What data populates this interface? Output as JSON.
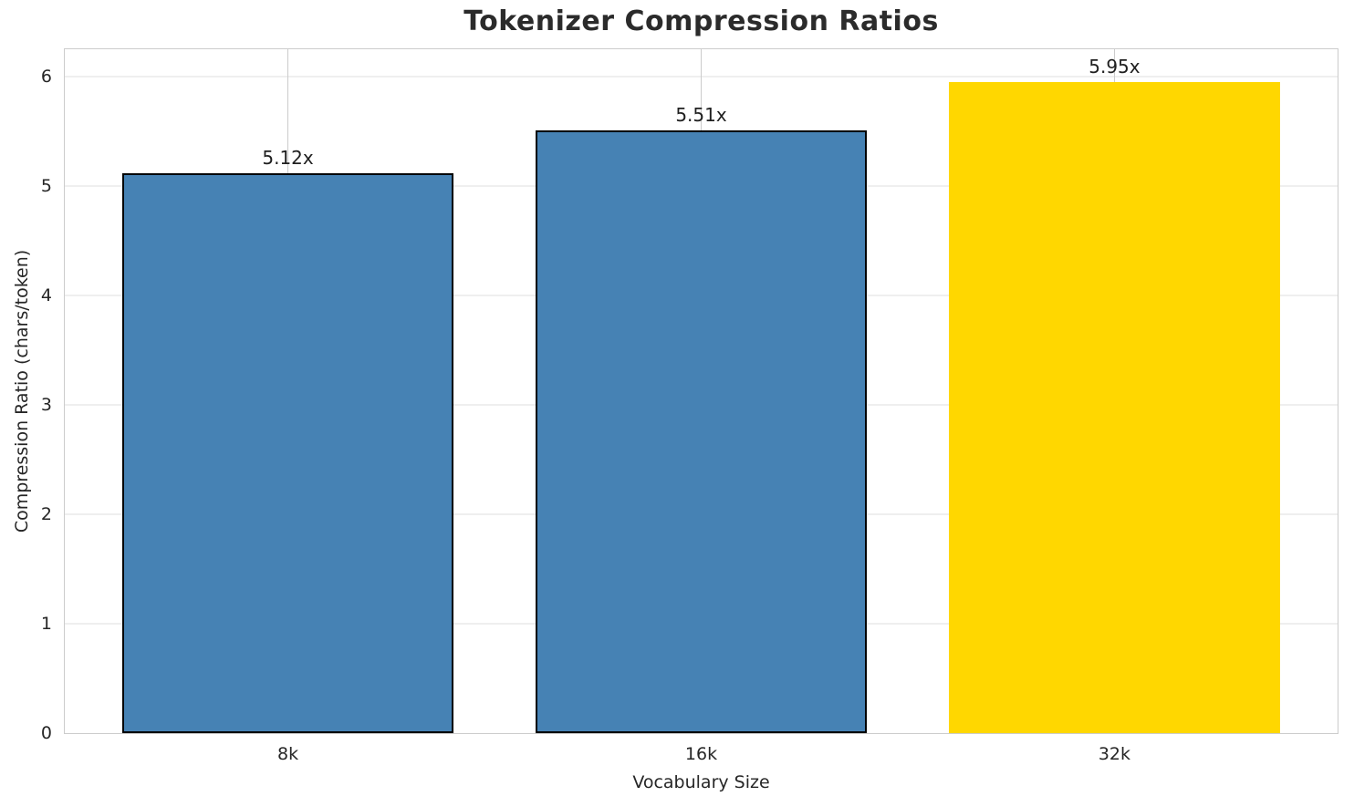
{
  "title": "Tokenizer Compression Ratios",
  "chart_data": {
    "type": "bar",
    "title": "Tokenizer Compression Ratios",
    "xlabel": "Vocabulary Size",
    "ylabel": "Compression Ratio (chars/token)",
    "categories": [
      "8k",
      "16k",
      "32k"
    ],
    "values": [
      5.12,
      5.51,
      5.95
    ],
    "bar_labels": [
      "5.12x",
      "5.51x",
      "5.95x"
    ],
    "bar_colors": [
      "#4682b4",
      "#4682b4",
      "#ffd700"
    ],
    "bar_edge_colors": [
      "#000000",
      "#000000",
      "#ffd700"
    ],
    "ylim": [
      0,
      6.25
    ],
    "yticks": [
      0,
      1,
      2,
      3,
      4,
      5,
      6
    ],
    "grid": true,
    "legend": false
  },
  "colors": {
    "bar_default": "#4682b4",
    "bar_highlight": "#ffd700",
    "bar_edge": "#000000",
    "grid_horizontal": "#efefef",
    "grid_vertical": "#cccccc",
    "spine": "#cccccc",
    "text": "#262626",
    "title_text": "#2b2b2b"
  }
}
